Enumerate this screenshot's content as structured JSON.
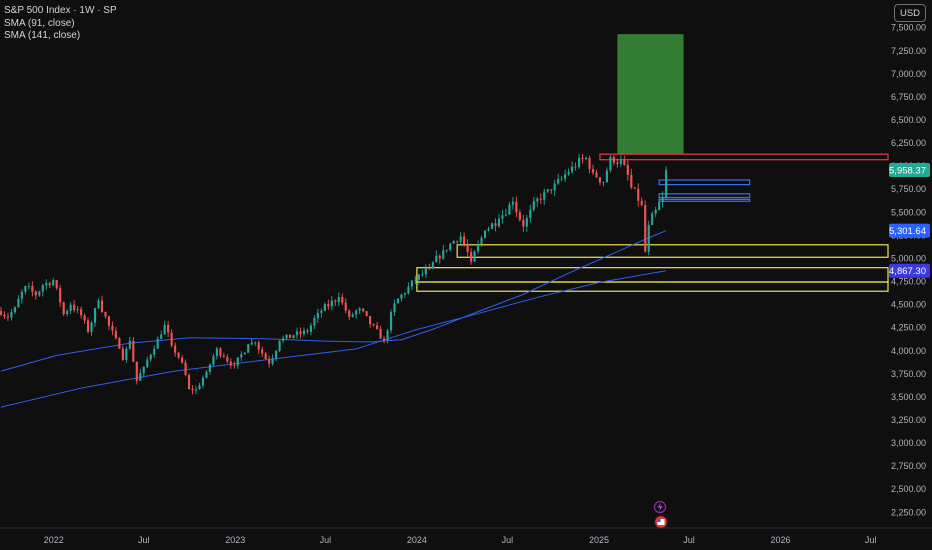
{
  "legend": {
    "symbol": "S&P 500 Index · 1W · SP",
    "sma1": "SMA (91, close)",
    "sma2": "SMA (141, close)"
  },
  "currency_button": "USD",
  "colors": {
    "background": "#0f0f0f",
    "bull": "#26a69a",
    "bear": "#ef5350",
    "sma": "#2f5ff0",
    "zone_yellow": "#f1e25c",
    "zone_red": "#f23645",
    "zone_blue": "#3f6ef2",
    "target_green": "#3a8f3a",
    "price_label_green": "#22ab94",
    "price_label_blue": "#2962ff",
    "price_label_purple": "#3a3adf"
  },
  "chart_data": {
    "type": "candlestick",
    "title": "S&P 500 Index · 1W · SP",
    "y_ticks": [
      2250,
      2500,
      2750,
      3000,
      3250,
      3500,
      3750,
      4000,
      4250,
      4500,
      4750,
      5000,
      5250,
      5500,
      5750,
      6000,
      6250,
      6500,
      6750,
      7000,
      7250,
      7500
    ],
    "y_tick_labels": [
      "2,250.00",
      "2,500.00",
      "2,750.00",
      "3,000.00",
      "3,250.00",
      "3,500.00",
      "3,750.00",
      "4,000.00",
      "4,250.00",
      "4,500.00",
      "4,750.00",
      "5,000.00",
      "5,250.00",
      "5,500.00",
      "5,750.00",
      "6,000.00",
      "6,250.00",
      "6,500.00",
      "6,750.00",
      "7,000.00",
      "7,250.00",
      "7,500.00"
    ],
    "ylim": [
      2080,
      7800
    ],
    "x_range": [
      "2021-09-15",
      "2026-08-05"
    ],
    "x_ticks": [
      {
        "date": "2022-01-01",
        "label": "2022"
      },
      {
        "date": "2022-07-01",
        "label": "Jul"
      },
      {
        "date": "2023-01-01",
        "label": "2023"
      },
      {
        "date": "2023-07-01",
        "label": "Jul"
      },
      {
        "date": "2024-01-01",
        "label": "2024"
      },
      {
        "date": "2024-07-01",
        "label": "Jul"
      },
      {
        "date": "2025-01-01",
        "label": "2025"
      },
      {
        "date": "2025-07-01",
        "label": "Jul"
      },
      {
        "date": "2026-01-01",
        "label": "2026"
      },
      {
        "date": "2026-07-01",
        "label": "Jul"
      }
    ],
    "close_path": [
      [
        "2021-09-17",
        4430
      ],
      [
        "2021-10-01",
        4360
      ],
      [
        "2021-10-15",
        4470
      ],
      [
        "2021-11-05",
        4700
      ],
      [
        "2021-11-26",
        4600
      ],
      [
        "2021-12-10",
        4710
      ],
      [
        "2021-12-31",
        4766
      ],
      [
        "2022-01-07",
        4677
      ],
      [
        "2022-01-21",
        4397
      ],
      [
        "2022-02-04",
        4500
      ],
      [
        "2022-02-25",
        4384
      ],
      [
        "2022-03-11",
        4204
      ],
      [
        "2022-04-01",
        4545
      ],
      [
        "2022-04-22",
        4271
      ],
      [
        "2022-05-13",
        4023
      ],
      [
        "2022-05-20",
        3901
      ],
      [
        "2022-06-03",
        4108
      ],
      [
        "2022-06-17",
        3674
      ],
      [
        "2022-07-01",
        3825
      ],
      [
        "2022-07-29",
        4130
      ],
      [
        "2022-08-12",
        4280
      ],
      [
        "2022-08-26",
        4057
      ],
      [
        "2022-09-16",
        3873
      ],
      [
        "2022-09-30",
        3585
      ],
      [
        "2022-10-14",
        3583
      ],
      [
        "2022-11-04",
        3770
      ],
      [
        "2022-11-25",
        4026
      ],
      [
        "2022-12-09",
        3934
      ],
      [
        "2022-12-30",
        3839
      ],
      [
        "2023-01-27",
        4070
      ],
      [
        "2023-02-10",
        4090
      ],
      [
        "2023-03-10",
        3861
      ],
      [
        "2023-03-31",
        4109
      ],
      [
        "2023-04-28",
        4169
      ],
      [
        "2023-05-26",
        4205
      ],
      [
        "2023-06-16",
        4409
      ],
      [
        "2023-07-28",
        4582
      ],
      [
        "2023-08-18",
        4369
      ],
      [
        "2023-09-08",
        4457
      ],
      [
        "2023-09-29",
        4288
      ],
      [
        "2023-10-27",
        4117
      ],
      [
        "2023-11-17",
        4514
      ],
      [
        "2023-12-29",
        4769
      ],
      [
        "2024-01-26",
        4890
      ],
      [
        "2024-02-23",
        5088
      ],
      [
        "2024-03-28",
        5254
      ],
      [
        "2024-04-19",
        4967
      ],
      [
        "2024-05-17",
        5303
      ],
      [
        "2024-06-14",
        5431
      ],
      [
        "2024-07-12",
        5615
      ],
      [
        "2024-08-02",
        5346
      ],
      [
        "2024-08-30",
        5648
      ],
      [
        "2024-09-27",
        5738
      ],
      [
        "2024-10-18",
        5864
      ],
      [
        "2024-11-08",
        5995
      ],
      [
        "2024-12-06",
        6090
      ],
      [
        "2024-12-20",
        5930
      ],
      [
        "2025-01-10",
        5827
      ],
      [
        "2025-01-24",
        6101
      ],
      [
        "2025-02-21",
        6013
      ],
      [
        "2025-03-07",
        5770
      ],
      [
        "2025-03-28",
        5580
      ],
      [
        "2025-04-04",
        5074
      ],
      [
        "2025-04-11",
        5363
      ],
      [
        "2025-04-25",
        5525
      ],
      [
        "2025-05-09",
        5659
      ],
      [
        "2025-05-16",
        5958
      ]
    ],
    "sma_91": [
      [
        "2021-09-17",
        3780
      ],
      [
        "2022-01-07",
        3950
      ],
      [
        "2022-06-01",
        4080
      ],
      [
        "2022-10-01",
        4140
      ],
      [
        "2023-03-01",
        4130
      ],
      [
        "2023-07-01",
        4105
      ],
      [
        "2023-10-01",
        4095
      ],
      [
        "2023-12-01",
        4120
      ],
      [
        "2024-02-01",
        4230
      ],
      [
        "2024-05-01",
        4420
      ],
      [
        "2024-08-01",
        4610
      ],
      [
        "2024-11-01",
        4840
      ],
      [
        "2025-02-01",
        5060
      ],
      [
        "2025-04-01",
        5200
      ],
      [
        "2025-05-16",
        5301.64
      ]
    ],
    "sma_141": [
      [
        "2021-09-17",
        3390
      ],
      [
        "2022-03-01",
        3600
      ],
      [
        "2022-09-01",
        3780
      ],
      [
        "2023-03-01",
        3900
      ],
      [
        "2023-09-01",
        4020
      ],
      [
        "2024-01-01",
        4230
      ],
      [
        "2024-05-01",
        4400
      ],
      [
        "2024-09-01",
        4580
      ],
      [
        "2025-01-01",
        4740
      ],
      [
        "2025-05-16",
        4867.3
      ]
    ],
    "zones": [
      {
        "color": "yellow",
        "x1": "2024-03-22",
        "x2": "2026-08-05",
        "y1": 5013,
        "y2": 5148
      },
      {
        "color": "yellow",
        "x1": "2024-01-01",
        "x2": "2026-08-05",
        "y1": 4900,
        "y2": 4745
      },
      {
        "color": "yellow",
        "x1": "2024-01-01",
        "x2": "2026-08-05",
        "y1": 4745,
        "y2": 4645
      },
      {
        "color": "red",
        "x1": "2025-01-03",
        "x2": "2026-08-05",
        "y1": 6070,
        "y2": 6130
      },
      {
        "color": "blue",
        "x1": "2025-05-02",
        "x2": "2025-10-31",
        "y1": 5800,
        "y2": 5850
      },
      {
        "color": "blue",
        "x1": "2025-05-02",
        "x2": "2025-10-31",
        "y1": 5660,
        "y2": 5700
      },
      {
        "color": "blue",
        "x1": "2025-05-02",
        "x2": "2025-10-31",
        "y1": 5620,
        "y2": 5640
      }
    ],
    "target_box": {
      "x1": "2025-02-07",
      "x2": "2025-06-20",
      "y1": 6130,
      "y2": 7430
    },
    "price_labels": [
      {
        "value": 5958.37,
        "text": "5,958.37",
        "color": "green"
      },
      {
        "value": 5301.64,
        "text": "5,301.64",
        "color": "blue"
      },
      {
        "value": 4867.3,
        "text": "4,867.30",
        "color": "purple"
      }
    ]
  }
}
